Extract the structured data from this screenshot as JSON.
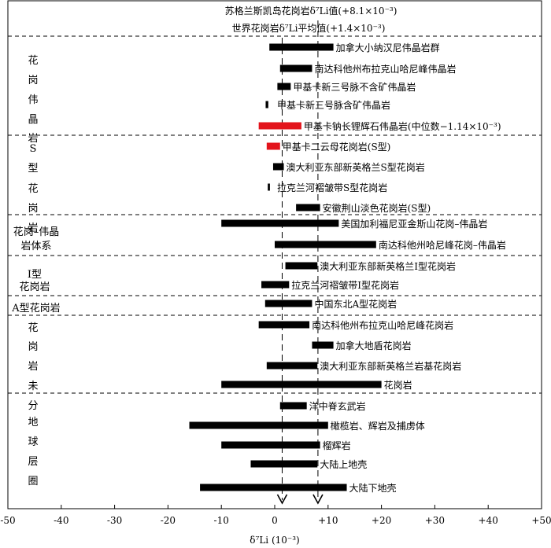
{
  "chart_data": {
    "type": "bar",
    "orientation": "horizontal-range",
    "xlabel": "δ⁷Li (10⁻³)",
    "xlim": [
      -50,
      50
    ],
    "xticks": [
      "-50",
      "-40",
      "-30",
      "-20",
      "-10",
      "0",
      "+10",
      "+20",
      "+30",
      "+40",
      "+50"
    ],
    "reference_lines": [
      {
        "x": 8.1,
        "label": "苏格兰斯凯岛花岗岩δ⁷Li值(+8.1×10⁻³)"
      },
      {
        "x": 1.4,
        "label": "世界花岗岩δ⁷Li平均值(+1.4×10⁻³)"
      }
    ],
    "groups": [
      {
        "label": "花岗伟晶岩",
        "rows": [
          0,
          4
        ]
      },
      {
        "label": "S型花岗岩",
        "rows": [
          5,
          8
        ]
      },
      {
        "label": "花岗–伟晶岩体系",
        "rows": [
          9,
          10
        ]
      },
      {
        "label": "I型花岗岩",
        "rows": [
          11,
          12
        ]
      },
      {
        "label": "A型花岗岩",
        "rows": [
          13,
          13
        ]
      },
      {
        "label": "花岗岩未分",
        "rows": [
          14,
          17
        ]
      },
      {
        "label": "地球层圈",
        "rows": [
          18,
          22
        ]
      }
    ],
    "series": [
      {
        "label": "加拿大小纳汉尼伟晶岩群",
        "min": -1,
        "max": 11,
        "color": "#000000"
      },
      {
        "label": "南达科他州布拉克山哈尼峰伟晶岩",
        "min": 1,
        "max": 7,
        "color": "#000000"
      },
      {
        "label": "甲基卡新三号脉不含矿伟晶岩",
        "min": 0.5,
        "max": 3,
        "color": "#000000"
      },
      {
        "label": "甲基卡新三号脉含矿伟晶岩",
        "min": -1.7,
        "max": -1.2,
        "color": "#000000"
      },
      {
        "label": "甲基卡钠长锂辉石伟晶岩(中位数−1.14×10⁻³)",
        "min": -3,
        "max": 5,
        "color": "#e3141c"
      },
      {
        "label": "甲基卡二云母花岗岩(S型)",
        "min": -1.5,
        "max": 1,
        "color": "#e3141c"
      },
      {
        "label": "澳大利亚东部新英格兰S型花岗岩",
        "min": -0.3,
        "max": 1.7,
        "color": "#000000"
      },
      {
        "label": "拉克兰河褶皱带S型花岗岩",
        "min": -1.3,
        "max": -0.9,
        "color": "#000000"
      },
      {
        "label": "安徽荆山淡色花岗岩(S型)",
        "min": 4,
        "max": 8.5,
        "color": "#000000"
      },
      {
        "label": "美国加利福尼亚金斯山花岗–伟晶岩",
        "min": -10,
        "max": 12,
        "color": "#000000"
      },
      {
        "label": "南达科他州哈尼峰花岗–伟晶岩",
        "min": 0,
        "max": 19,
        "color": "#000000"
      },
      {
        "label": "澳大利亚东部新英格兰I型花岗岩",
        "min": 2,
        "max": 8,
        "color": "#000000"
      },
      {
        "label": "拉克兰河褶皱带I型花岗岩",
        "min": -2.5,
        "max": 2.7,
        "color": "#000000"
      },
      {
        "label": "中国东北A型花岗岩",
        "min": -1.8,
        "max": 7,
        "color": "#000000"
      },
      {
        "label": "南达科他州布拉克山哈尼峰花岗岩",
        "min": -3,
        "max": 6.5,
        "color": "#000000"
      },
      {
        "label": "加拿大地盾花岗岩",
        "min": 7,
        "max": 11,
        "color": "#000000"
      },
      {
        "label": "澳大利亚东部新英格兰岩基花岗岩",
        "min": -1.5,
        "max": 8,
        "color": "#000000"
      },
      {
        "label": "花岗岩",
        "min": -10,
        "max": 20,
        "color": "#000000"
      },
      {
        "label": "洋中脊玄武岩",
        "min": 1,
        "max": 6,
        "color": "#000000"
      },
      {
        "label": "橄榄岩、辉岩及捕虏体",
        "min": -16,
        "max": 10,
        "color": "#000000"
      },
      {
        "label": "榴辉岩",
        "min": -10,
        "max": 8.5,
        "color": "#000000"
      },
      {
        "label": "大陆上地壳",
        "min": -4.5,
        "max": 8,
        "color": "#000000"
      },
      {
        "label": "大陆下地壳",
        "min": -14,
        "max": 13.5,
        "color": "#000000"
      }
    ]
  }
}
